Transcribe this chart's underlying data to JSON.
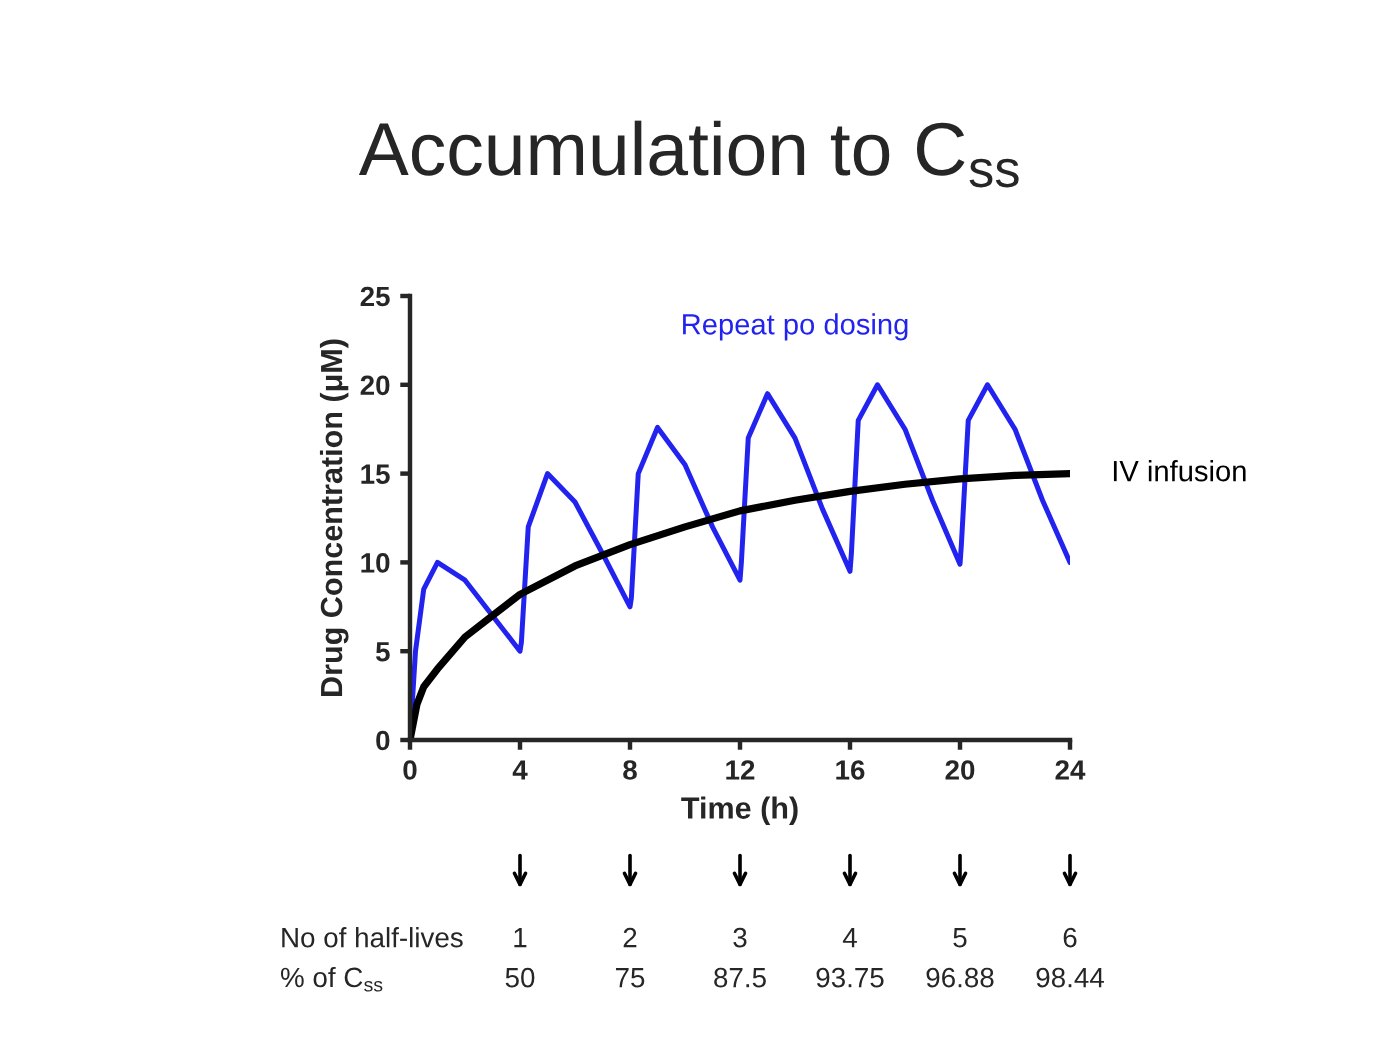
{
  "chart_data": {
    "type": "line",
    "title": "Accumulation to C$_{ss}$",
    "xlabel": "Time (h)",
    "ylabel": "Drug Concentration (μM)",
    "xlim": [
      0,
      24
    ],
    "xticks": [
      0,
      4,
      8,
      12,
      16,
      20,
      24
    ],
    "ylim": [
      0,
      25
    ],
    "yticks": [
      0,
      5,
      10,
      15,
      20,
      25
    ],
    "grid": false,
    "legend": false,
    "series": [
      {
        "name": "Repeat po dosing",
        "color": "#2323f0",
        "x": [
          0,
          0.2,
          0.5,
          1,
          2,
          3,
          4,
          4.05,
          4.3,
          5,
          6,
          7,
          8,
          8.05,
          8.3,
          9,
          10,
          11,
          12,
          12.05,
          12.3,
          13,
          14,
          15,
          16,
          16.05,
          16.3,
          17,
          18,
          19,
          20,
          20.05,
          20.3,
          21,
          22,
          23,
          24
        ],
        "values": [
          0,
          5,
          8.5,
          10,
          9,
          7,
          5,
          5.5,
          12,
          15,
          13.4,
          10.5,
          7.5,
          8,
          15,
          17.6,
          15.5,
          12,
          9,
          10,
          17,
          19.5,
          17,
          13,
          9.5,
          10.5,
          18,
          20,
          17.5,
          13.5,
          9.9,
          11,
          18,
          20,
          17.5,
          13.5,
          10
        ]
      },
      {
        "name": "IV infusion",
        "color": "#000000",
        "x": [
          0,
          0.25,
          0.5,
          1,
          2,
          3,
          4,
          6,
          8,
          10,
          12,
          14,
          16,
          18,
          20,
          22,
          24
        ],
        "values": [
          0,
          2,
          3,
          4,
          5.8,
          7,
          8.2,
          9.8,
          11,
          12,
          12.9,
          13.5,
          14,
          14.4,
          14.7,
          14.9,
          15
        ]
      }
    ],
    "annotations": [
      "No of half-lives",
      "1",
      "2",
      "3",
      "4",
      "5",
      "6",
      "% of C$_{ss}$",
      "50",
      "75",
      "87.5",
      "93.75",
      "96.88",
      "98.44"
    ]
  }
}
